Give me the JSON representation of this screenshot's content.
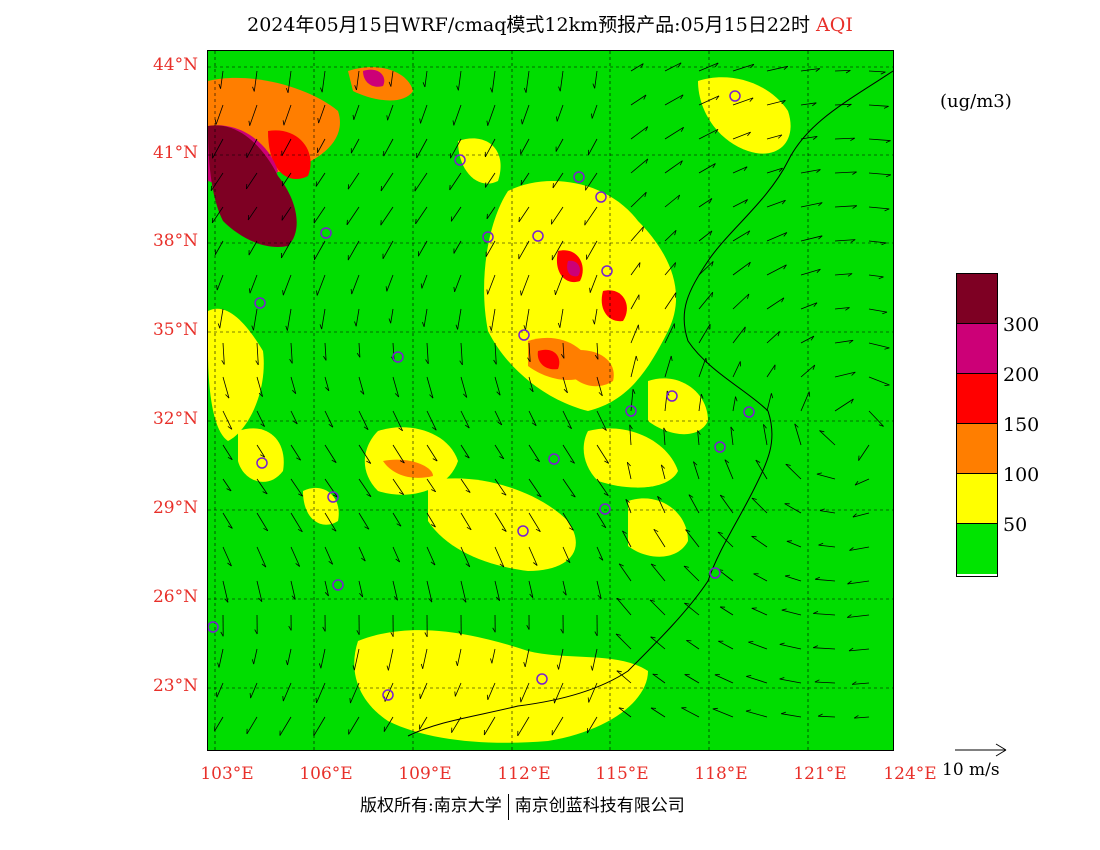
{
  "title": {
    "main": "2024年05月15日WRF/cmaq模式12km预报产品:05月15日22时",
    "product": "AQI"
  },
  "map": {
    "lat_labels": [
      "44°N",
      "41°N",
      "38°N",
      "35°N",
      "32°N",
      "29°N",
      "26°N",
      "23°N"
    ],
    "lon_labels": [
      "103°E",
      "106°E",
      "109°E",
      "112°E",
      "115°E",
      "118°E",
      "121°E",
      "124°E"
    ],
    "lat_range": [
      21,
      44.5
    ],
    "lon_range": [
      103,
      124
    ],
    "background_color": "#00dd00",
    "wind_reference": "10 m/s",
    "stations_color": "#7a1fd0"
  },
  "legend": {
    "unit": "(ug/m3)",
    "labels": [
      "300",
      "200",
      "150",
      "100",
      "50"
    ],
    "colors": [
      "#7e0023",
      "#cc0077",
      "#ff0000",
      "#ff7e00",
      "#ffff00",
      "#00e400"
    ]
  },
  "footer": {
    "credit_left": "版权所有:南京大学",
    "credit_right": "南京创蓝科技有限公司"
  }
}
